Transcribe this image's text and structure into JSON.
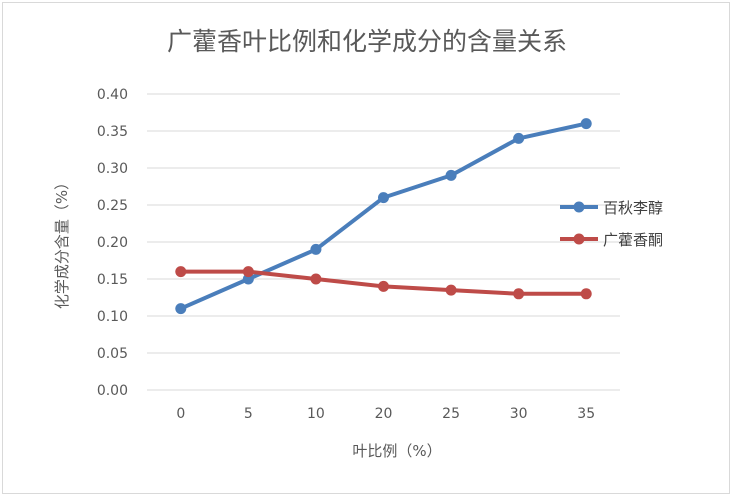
{
  "chart_data": {
    "type": "line",
    "title": "广藿香叶比例和化学成分的含量关系",
    "xlabel": "叶比例（%）",
    "ylabel": "化学成分含量（%）",
    "categories": [
      "0",
      "5",
      "10",
      "20",
      "25",
      "30",
      "35"
    ],
    "ylim": [
      0,
      0.4
    ],
    "yticks": [
      "0.00",
      "0.05",
      "0.10",
      "0.15",
      "0.20",
      "0.25",
      "0.30",
      "0.35",
      "0.40"
    ],
    "grid": true,
    "legend_position": "right",
    "series": [
      {
        "name": "百秋李醇",
        "color": "#4a7ebb",
        "values": [
          0.11,
          0.15,
          0.19,
          0.26,
          0.29,
          0.34,
          0.36
        ]
      },
      {
        "name": "广藿香酮",
        "color": "#be4b48",
        "values": [
          0.16,
          0.16,
          0.15,
          0.14,
          0.135,
          0.13,
          0.13
        ]
      }
    ]
  }
}
